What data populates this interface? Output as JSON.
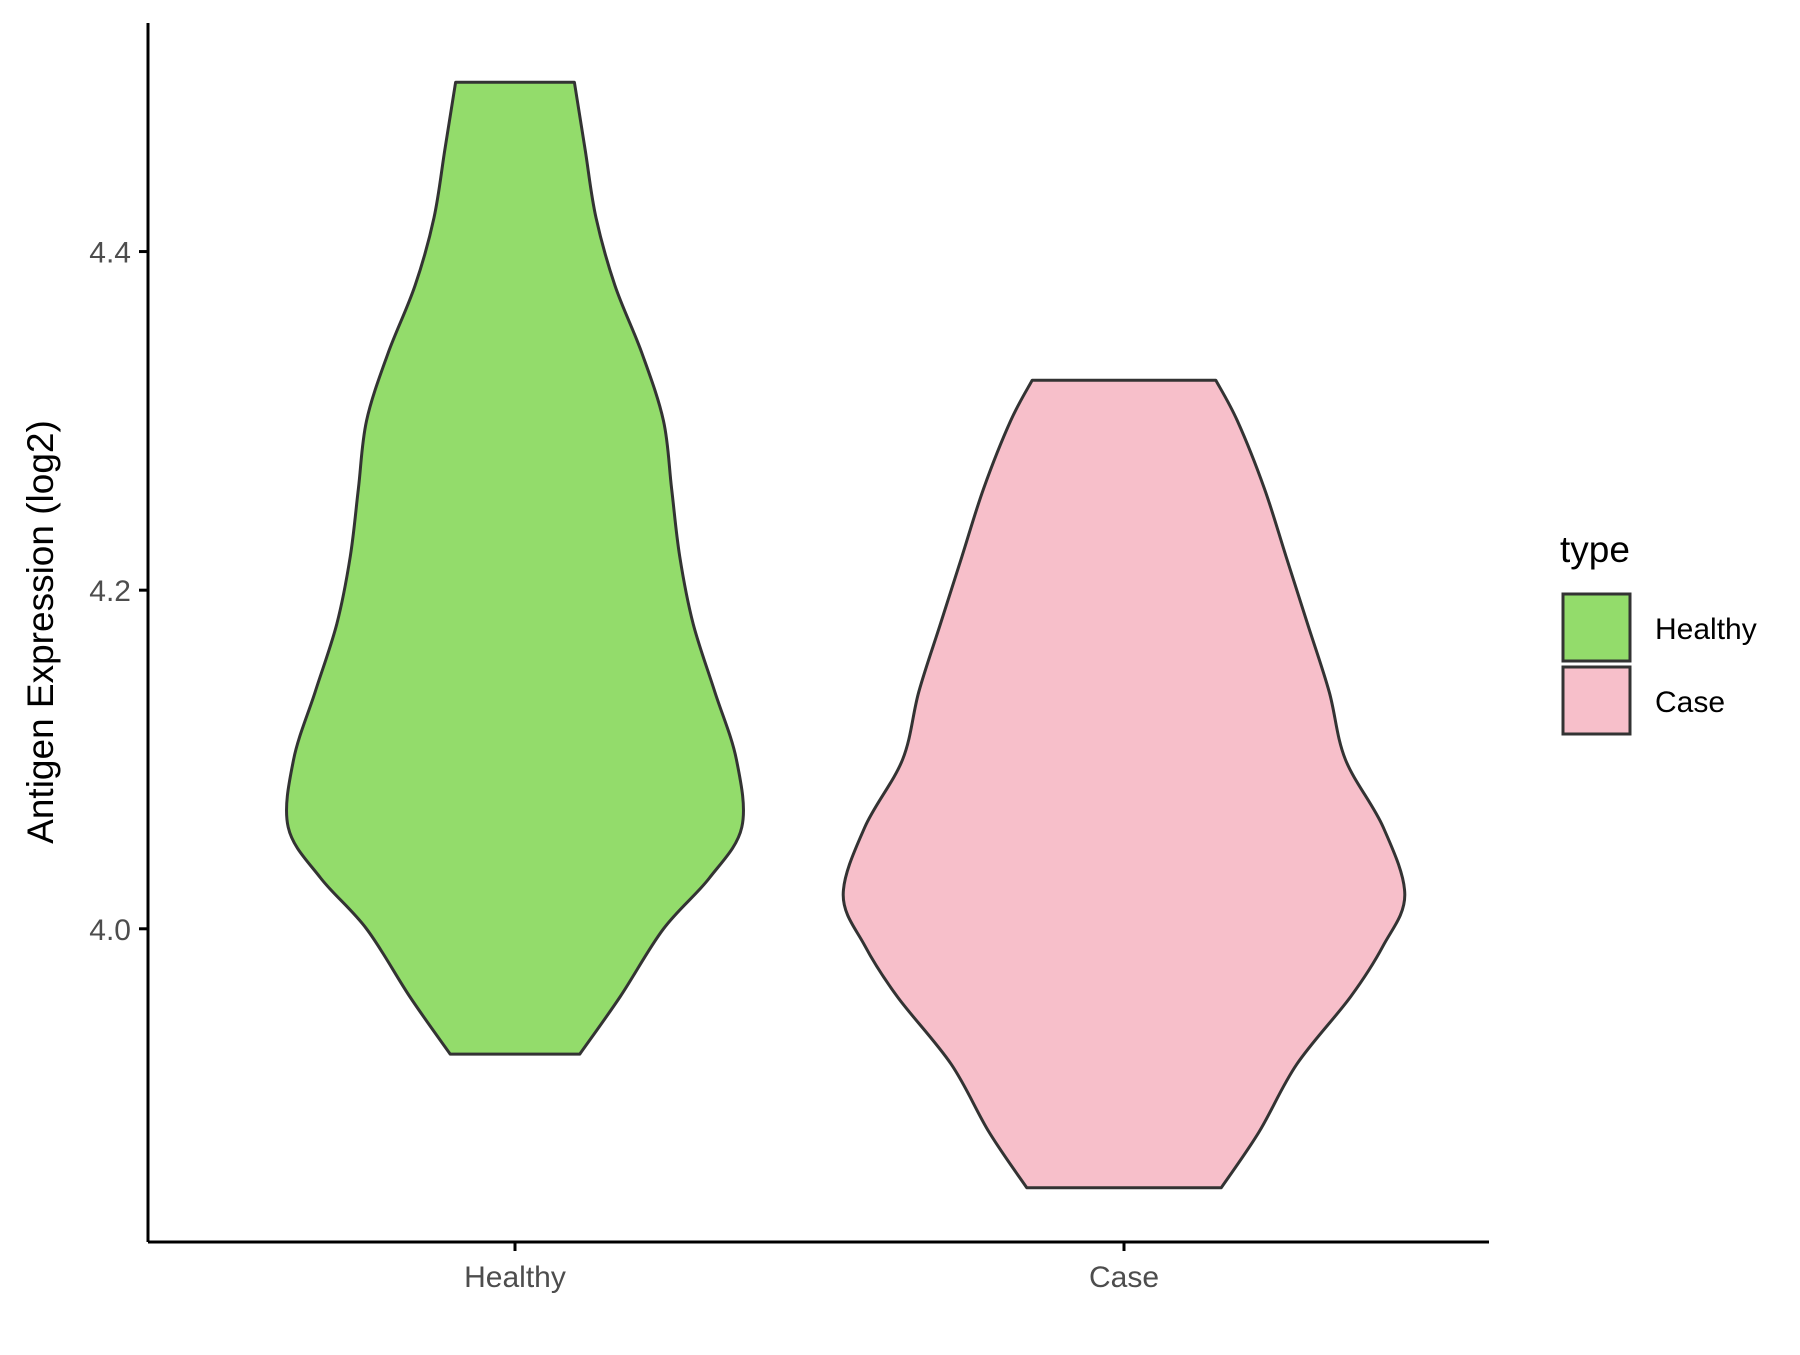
{
  "chart_data": {
    "type": "violin",
    "title": "",
    "xlabel": "",
    "ylabel": "Antigen Expression (log2)",
    "categories": [
      "Healthy",
      "Case"
    ],
    "y_ticks": [
      "4.0",
      "4.2",
      "4.4"
    ],
    "ylim": [
      3.815,
      4.535
    ],
    "grid": false,
    "legend": {
      "title": "type",
      "position": "right",
      "entries": [
        {
          "label": "Healthy",
          "color": "#93dc6b"
        },
        {
          "label": "Case",
          "color": "#f7bfca"
        }
      ]
    },
    "series": [
      {
        "name": "Healthy",
        "color": "#93dc6b",
        "min": 3.926,
        "max": 4.5,
        "profile": [
          [
            3.926,
            0.24
          ],
          [
            3.96,
            0.39
          ],
          [
            4.0,
            0.55
          ],
          [
            4.03,
            0.72
          ],
          [
            4.06,
            0.84
          ],
          [
            4.1,
            0.82
          ],
          [
            4.14,
            0.74
          ],
          [
            4.18,
            0.66
          ],
          [
            4.22,
            0.61
          ],
          [
            4.26,
            0.58
          ],
          [
            4.3,
            0.55
          ],
          [
            4.34,
            0.47
          ],
          [
            4.38,
            0.37
          ],
          [
            4.42,
            0.3
          ],
          [
            4.46,
            0.26
          ],
          [
            4.5,
            0.22
          ]
        ]
      },
      {
        "name": "Case",
        "color": "#f7bfca",
        "min": 3.847,
        "max": 4.324,
        "profile": [
          [
            3.847,
            0.36
          ],
          [
            3.88,
            0.5
          ],
          [
            3.92,
            0.64
          ],
          [
            3.96,
            0.84
          ],
          [
            3.99,
            0.96
          ],
          [
            4.02,
            1.04
          ],
          [
            4.06,
            0.96
          ],
          [
            4.1,
            0.82
          ],
          [
            4.14,
            0.76
          ],
          [
            4.18,
            0.68
          ],
          [
            4.22,
            0.6
          ],
          [
            4.26,
            0.52
          ],
          [
            4.3,
            0.42
          ],
          [
            4.324,
            0.34
          ]
        ]
      }
    ]
  }
}
